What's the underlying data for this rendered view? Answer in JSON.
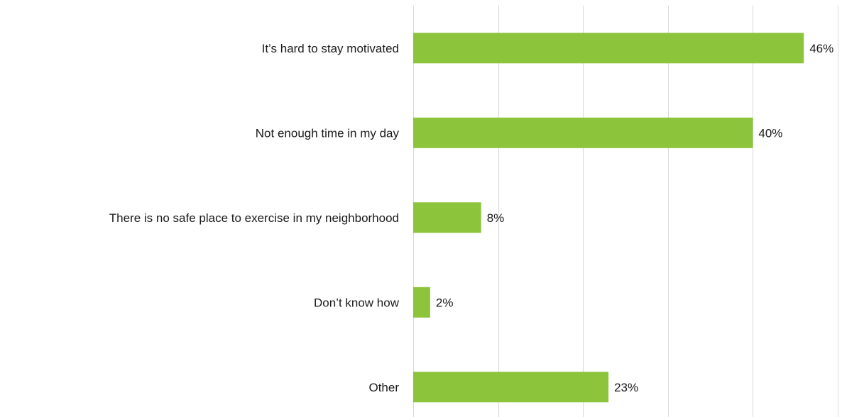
{
  "chart_data": {
    "type": "bar",
    "orientation": "horizontal",
    "categories": [
      "It’s hard to stay motivated",
      "Not enough time in my day",
      "There is no safe place to exercise in my neighborhood",
      "Don’t know how",
      "Other"
    ],
    "values": [
      46,
      40,
      8,
      2,
      23
    ],
    "data_labels": [
      "46%",
      "40%",
      "8%",
      "2%",
      "23%"
    ],
    "xlim": [
      0,
      50
    ],
    "x_gridlines": [
      0,
      10,
      20,
      30,
      40,
      50
    ],
    "grid": true,
    "legend": "none",
    "bar_color": "#8cc43c",
    "title": "",
    "xlabel": "",
    "ylabel": ""
  }
}
